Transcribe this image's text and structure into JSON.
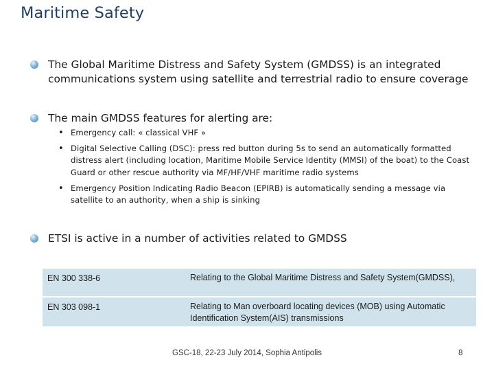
{
  "title": "Maritime Safety",
  "bullets": [
    "The Global Maritime Distress and Safety System (GMDSS) is an integrated communications system using satellite and terrestrial radio to ensure coverage",
    "The main GMDSS features for alerting are:",
    "ETSI is active in a number of activities related to GMDSS"
  ],
  "sub_bullets": [
    "Emergency call: « classical VHF »",
    "Digital Selective Calling (DSC): press red button during 5s to send an automatically formatted distress alert  (including location, Maritime Mobile Service Identity (MMSI) of the boat) to the Coast Guard or other rescue authority via MF/HF/VHF maritime radio systems",
    "Emergency Position Indicating Radio Beacon (EPIRB) is automatically sending a message via satellite to an authority, when a ship is sinking"
  ],
  "table": {
    "rows": [
      {
        "code": "EN 300 338-6",
        "desc": "Relating to the Global Maritime Distress and Safety System(GMDSS),"
      },
      {
        "code": "EN 303 098-1",
        "desc": "Relating to Man overboard locating devices (MOB) using Automatic Identification  System(AIS) transmissions"
      }
    ]
  },
  "footer": "GSC-18, 22-23 July 2014, Sophia Antipolis",
  "page_number": "8",
  "colors": {
    "title": "#1f3f5e",
    "table_bg": "#d0e3ec",
    "bullet": "#3a78ad"
  }
}
